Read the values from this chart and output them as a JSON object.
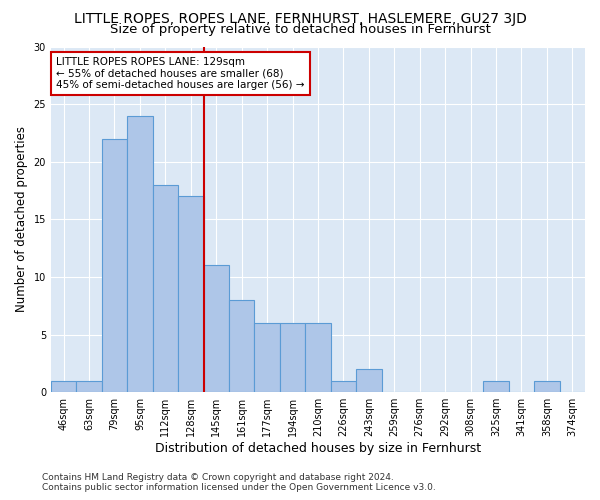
{
  "title": "LITTLE ROPES, ROPES LANE, FERNHURST, HASLEMERE, GU27 3JD",
  "subtitle": "Size of property relative to detached houses in Fernhurst",
  "xlabel": "Distribution of detached houses by size in Fernhurst",
  "ylabel": "Number of detached properties",
  "categories": [
    "46sqm",
    "63sqm",
    "79sqm",
    "95sqm",
    "112sqm",
    "128sqm",
    "145sqm",
    "161sqm",
    "177sqm",
    "194sqm",
    "210sqm",
    "226sqm",
    "243sqm",
    "259sqm",
    "276sqm",
    "292sqm",
    "308sqm",
    "325sqm",
    "341sqm",
    "358sqm",
    "374sqm"
  ],
  "values": [
    1,
    1,
    22,
    24,
    18,
    17,
    11,
    8,
    6,
    6,
    6,
    1,
    2,
    0,
    0,
    0,
    0,
    1,
    0,
    1,
    0
  ],
  "bar_color": "#aec6e8",
  "bar_edge_color": "#5b9bd5",
  "bar_edge_width": 0.8,
  "vline_color": "#cc0000",
  "vline_label_line1": "LITTLE ROPES ROPES LANE: 129sqm",
  "vline_label_line2": "← 55% of detached houses are smaller (68)",
  "vline_label_line3": "45% of semi-detached houses are larger (56) →",
  "box_color": "#cc0000",
  "ylim": [
    0,
    30
  ],
  "yticks": [
    0,
    5,
    10,
    15,
    20,
    25,
    30
  ],
  "background_color": "#dce8f5",
  "grid_color": "#ffffff",
  "fig_background": "#ffffff",
  "footer_line1": "Contains HM Land Registry data © Crown copyright and database right 2024.",
  "footer_line2": "Contains public sector information licensed under the Open Government Licence v3.0.",
  "title_fontsize": 10,
  "subtitle_fontsize": 9.5,
  "ylabel_fontsize": 8.5,
  "xlabel_fontsize": 9,
  "tick_fontsize": 7,
  "annotation_fontsize": 7.5,
  "footer_fontsize": 6.5
}
